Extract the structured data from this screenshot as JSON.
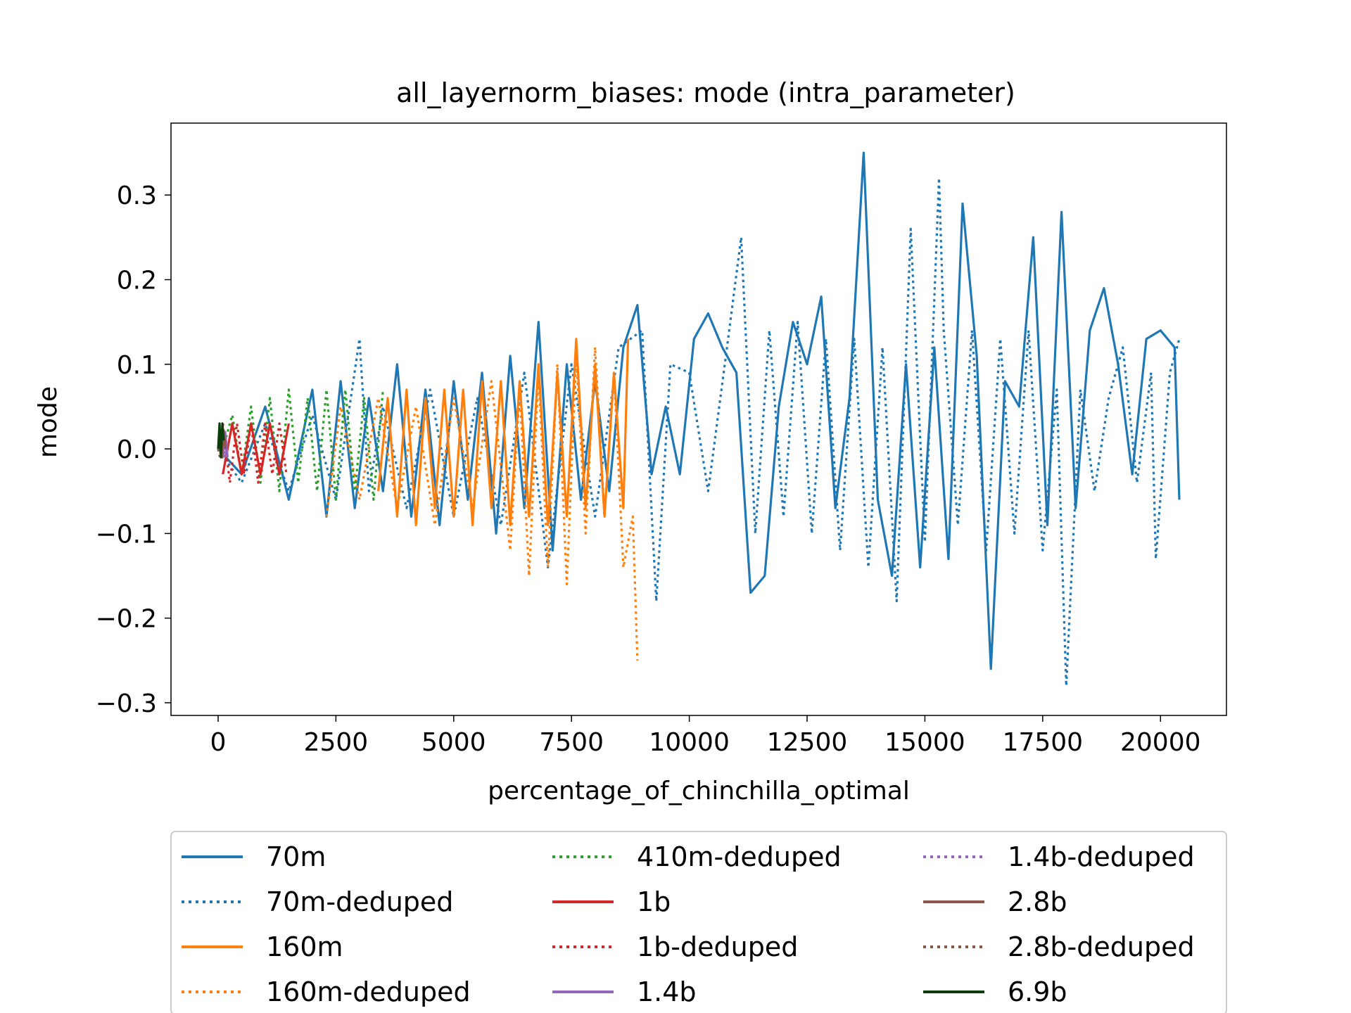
{
  "chart_data": {
    "type": "line",
    "title": "all_layernorm_biases: mode (intra_parameter)",
    "xlabel": "percentage_of_chinchilla_optimal",
    "ylabel": "mode",
    "xlim": [
      -1000,
      21400
    ],
    "ylim": [
      -0.315,
      0.385
    ],
    "xticks": [
      0,
      2500,
      5000,
      7500,
      10000,
      12500,
      15000,
      17500,
      20000
    ],
    "xtick_labels": [
      "0",
      "2500",
      "5000",
      "7500",
      "10000",
      "12500",
      "15000",
      "17500",
      "20000"
    ],
    "yticks": [
      -0.3,
      -0.2,
      -0.1,
      0.0,
      0.1,
      0.2,
      0.3
    ],
    "ytick_labels": [
      "−0.3",
      "−0.2",
      "−0.1",
      "0.0",
      "0.1",
      "0.2",
      "0.3"
    ],
    "grid": false,
    "legend_position": "below-plot",
    "legend_columns": 3,
    "series": [
      {
        "name": "70m",
        "color": "#1f77b4",
        "style": "solid",
        "x": [
          0,
          500,
          1000,
          1500,
          2000,
          2300,
          2600,
          2900,
          3200,
          3500,
          3800,
          4100,
          4400,
          4700,
          5000,
          5300,
          5600,
          5900,
          6200,
          6500,
          6800,
          7100,
          7400,
          7700,
          8000,
          8300,
          8600,
          8900,
          9200,
          9500,
          9800,
          10100,
          10400,
          10700,
          11000,
          11300,
          11600,
          11900,
          12200,
          12500,
          12800,
          13100,
          13400,
          13700,
          14000,
          14300,
          14600,
          14900,
          15200,
          15500,
          15800,
          16100,
          16400,
          16700,
          17000,
          17300,
          17600,
          17900,
          18200,
          18500,
          18800,
          19100,
          19400,
          19700,
          20000,
          20300,
          20400
        ],
        "y": [
          0.0,
          -0.03,
          0.05,
          -0.06,
          0.07,
          -0.08,
          0.08,
          -0.07,
          0.06,
          -0.05,
          0.1,
          -0.08,
          0.07,
          -0.09,
          0.08,
          -0.06,
          0.09,
          -0.1,
          0.11,
          -0.07,
          0.15,
          -0.12,
          0.1,
          -0.06,
          0.08,
          -0.05,
          0.12,
          0.17,
          -0.03,
          0.05,
          -0.03,
          0.13,
          0.16,
          0.12,
          0.09,
          -0.17,
          -0.15,
          0.05,
          0.15,
          0.1,
          0.18,
          -0.07,
          0.06,
          0.35,
          -0.06,
          -0.15,
          0.1,
          -0.14,
          0.12,
          -0.13,
          0.29,
          0.11,
          -0.26,
          0.08,
          0.05,
          0.25,
          -0.09,
          0.28,
          -0.07,
          0.14,
          0.19,
          0.1,
          -0.03,
          0.13,
          0.14,
          0.12,
          -0.06
        ]
      },
      {
        "name": "70m-deduped",
        "color": "#1f77b4",
        "style": "dotted",
        "x": [
          0,
          500,
          1000,
          1500,
          2000,
          2500,
          3000,
          3200,
          3500,
          4000,
          4500,
          5000,
          5500,
          6000,
          6500,
          7000,
          7500,
          8000,
          8500,
          9000,
          9300,
          9600,
          10000,
          10400,
          10800,
          11100,
          11400,
          11700,
          12000,
          12300,
          12600,
          12900,
          13200,
          13500,
          13800,
          14100,
          14400,
          14700,
          15000,
          15300,
          15400,
          15700,
          16000,
          16300,
          16600,
          16900,
          17200,
          17500,
          17800,
          18000,
          18300,
          18600,
          18900,
          19200,
          19500,
          19800,
          19900,
          20200,
          20400
        ],
        "y": [
          0.0,
          -0.04,
          0.03,
          -0.05,
          0.04,
          -0.06,
          0.13,
          -0.05,
          0.05,
          -0.07,
          0.07,
          -0.08,
          0.06,
          -0.09,
          0.09,
          -0.14,
          0.1,
          -0.08,
          0.12,
          0.14,
          -0.18,
          0.1,
          0.09,
          -0.05,
          0.12,
          0.25,
          -0.1,
          0.14,
          -0.08,
          0.15,
          -0.1,
          0.13,
          -0.12,
          0.13,
          -0.14,
          0.12,
          -0.18,
          0.26,
          -0.11,
          0.32,
          0.14,
          -0.09,
          0.14,
          -0.12,
          0.13,
          -0.1,
          0.14,
          -0.12,
          0.07,
          -0.28,
          0.07,
          -0.05,
          0.06,
          0.12,
          -0.04,
          0.09,
          -0.13,
          0.09,
          0.13
        ]
      },
      {
        "name": "160m",
        "color": "#ff7f0e",
        "style": "solid",
        "x": [
          3400,
          3600,
          3800,
          4000,
          4200,
          4400,
          4600,
          4800,
          5000,
          5200,
          5400,
          5600,
          5800,
          6000,
          6200,
          6400,
          6600,
          6800,
          7000,
          7200,
          7400,
          7600,
          7800,
          8000,
          8200,
          8400,
          8600,
          8700
        ],
        "y": [
          -0.05,
          0.06,
          -0.08,
          0.07,
          -0.09,
          0.06,
          -0.07,
          0.07,
          -0.08,
          0.07,
          -0.09,
          0.08,
          -0.07,
          0.08,
          -0.09,
          0.08,
          -0.08,
          0.1,
          -0.09,
          0.09,
          -0.08,
          0.13,
          -0.07,
          0.1,
          -0.08,
          0.09,
          -0.07,
          0.13
        ]
      },
      {
        "name": "160m-deduped",
        "color": "#ff7f0e",
        "style": "dotted",
        "x": [
          2300,
          2600,
          3000,
          3400,
          3800,
          4200,
          4600,
          5000,
          5400,
          5800,
          6200,
          6400,
          6600,
          6800,
          7000,
          7200,
          7400,
          7600,
          7800,
          8000,
          8200,
          8400,
          8600,
          8800,
          8900
        ],
        "y": [
          -0.08,
          0.05,
          -0.06,
          0.06,
          -0.07,
          0.05,
          -0.09,
          0.06,
          -0.07,
          0.08,
          -0.12,
          0.07,
          -0.15,
          0.09,
          -0.14,
          0.1,
          -0.16,
          0.11,
          -0.1,
          0.12,
          -0.08,
          0.09,
          -0.14,
          -0.08,
          -0.25
        ]
      },
      {
        "name": "410m-deduped",
        "color": "#2ca02c",
        "style": "dotted",
        "x": [
          100,
          300,
          500,
          700,
          900,
          1100,
          1300,
          1500,
          1700,
          1900,
          2100,
          2300,
          2500,
          2700,
          2900,
          3100,
          3300,
          3500
        ],
        "y": [
          0.0,
          0.04,
          -0.03,
          0.05,
          -0.04,
          0.06,
          -0.05,
          0.07,
          -0.04,
          0.06,
          -0.05,
          0.07,
          -0.06,
          0.07,
          -0.05,
          0.06,
          -0.06,
          0.07
        ]
      },
      {
        "name": "1b",
        "color": "#d62728",
        "style": "solid",
        "x": [
          100,
          300,
          500,
          700,
          900,
          1100,
          1300,
          1500
        ],
        "y": [
          -0.03,
          0.03,
          -0.03,
          0.03,
          -0.03,
          0.03,
          -0.03,
          0.03
        ]
      },
      {
        "name": "1b-deduped",
        "color": "#d62728",
        "style": "dotted",
        "x": [
          100,
          250,
          400,
          550,
          700,
          850,
          1000,
          1150,
          1300,
          1450
        ],
        "y": [
          0.03,
          -0.04,
          0.03,
          -0.03,
          0.03,
          -0.04,
          0.03,
          -0.03,
          0.03,
          -0.03
        ]
      },
      {
        "name": "1.4b",
        "color": "#9467bd",
        "style": "solid",
        "x": [
          0,
          50,
          100,
          150,
          200
        ],
        "y": [
          0.0,
          0.02,
          -0.01,
          0.02,
          -0.01
        ]
      },
      {
        "name": "1.4b-deduped",
        "color": "#9467bd",
        "style": "dotted",
        "x": [
          0,
          50,
          100,
          150,
          200
        ],
        "y": [
          0.0,
          -0.01,
          0.02,
          -0.01,
          0.01
        ]
      },
      {
        "name": "2.8b",
        "color": "#8c564b",
        "style": "solid",
        "x": [
          0,
          40,
          80,
          120,
          160
        ],
        "y": [
          0.0,
          0.01,
          -0.01,
          0.02,
          0.0
        ]
      },
      {
        "name": "2.8b-deduped",
        "color": "#8c564b",
        "style": "dotted",
        "x": [
          0,
          40,
          80,
          120,
          160
        ],
        "y": [
          0.0,
          -0.01,
          0.01,
          0.0,
          0.01
        ]
      },
      {
        "name": "6.9b",
        "color": "#0b3d0b",
        "style": "solid",
        "x": [
          0,
          30,
          60,
          90,
          120
        ],
        "y": [
          0.0,
          0.03,
          -0.01,
          0.03,
          0.01
        ]
      }
    ]
  }
}
